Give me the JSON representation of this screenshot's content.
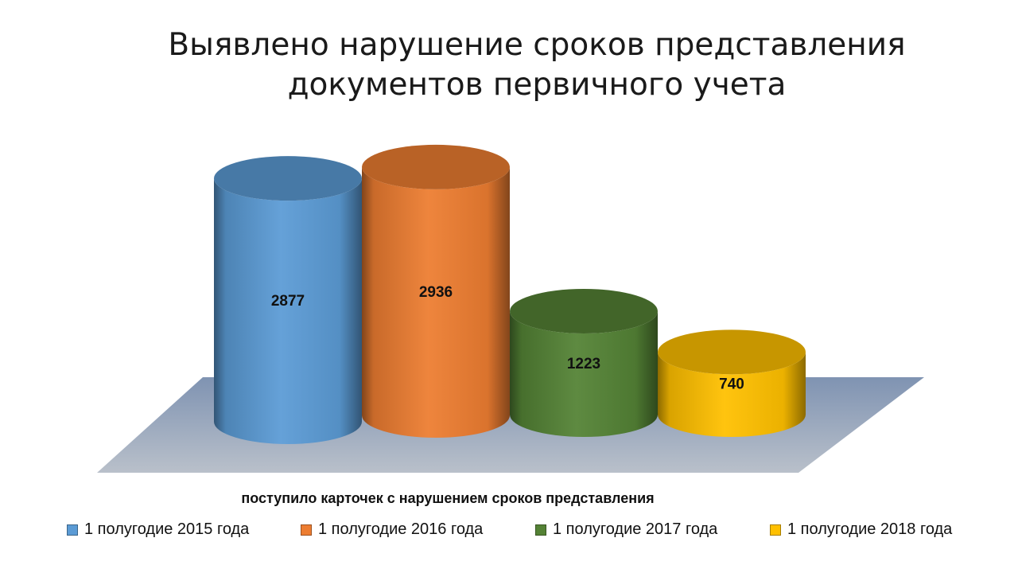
{
  "title": {
    "line1": "Выявлено нарушение сроков представления",
    "line2": "документов первичного учета"
  },
  "chart_data": {
    "type": "bar",
    "style": "3d-cylinder",
    "title": "Выявлено нарушение сроков представления документов первичного учета",
    "categories": [
      "поступило карточек с нарушением сроков представления"
    ],
    "series": [
      {
        "name": "1 полугодие 2015 года",
        "values": [
          2877
        ],
        "color": "#5B9BD5"
      },
      {
        "name": "1 полугодие 2016 года",
        "values": [
          2936
        ],
        "color": "#ED7D31"
      },
      {
        "name": "1 полугодие 2017 года",
        "values": [
          1223
        ],
        "color": "#548235"
      },
      {
        "name": "1 полугодие 2018 года",
        "values": [
          740
        ],
        "color": "#FFC000"
      }
    ],
    "data_labels": [
      "2877",
      "2936",
      "1223",
      "740"
    ],
    "ylim": [
      0,
      3000
    ],
    "grid": false,
    "legend_position": "bottom"
  }
}
